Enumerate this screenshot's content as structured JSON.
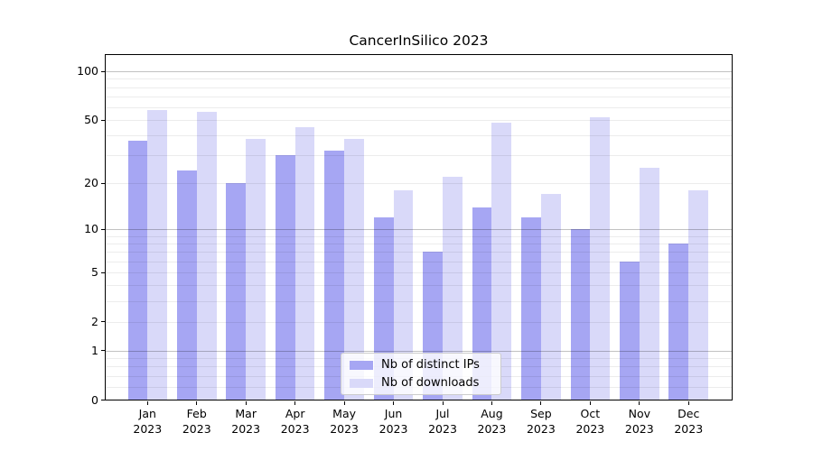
{
  "title": "CancerInSilico 2023",
  "chart_data": {
    "type": "bar",
    "title": "CancerInSilico 2023",
    "categories": [
      "Jan",
      "Feb",
      "Mar",
      "Apr",
      "May",
      "Jun",
      "Jul",
      "Aug",
      "Sep",
      "Oct",
      "Nov",
      "Dec"
    ],
    "category_year_line": "2023",
    "series": [
      {
        "name": "Nb of distinct IPs",
        "color": "#a6a6f3",
        "values": [
          37,
          24,
          20,
          30,
          32,
          12,
          7,
          14,
          12,
          10,
          6,
          8
        ]
      },
      {
        "name": "Nb of downloads",
        "color": "#d9d9f9",
        "values": [
          58,
          56,
          38,
          45,
          38,
          18,
          22,
          48,
          17,
          52,
          25,
          18
        ]
      }
    ],
    "y_scale": "log10(1+v)",
    "y_axis_ticks": [
      0,
      1,
      2,
      5,
      10,
      20,
      50,
      100
    ],
    "y_gridlines_major": [
      1,
      10,
      100
    ],
    "y_gridlines_minor": [
      0.2,
      0.4,
      0.6,
      0.8,
      2,
      3,
      4,
      5,
      6,
      7,
      8,
      9,
      20,
      30,
      40,
      50,
      60,
      70,
      80,
      90
    ],
    "ylim": [
      0,
      128
    ],
    "xlabel": "",
    "ylabel": "",
    "grid": true,
    "legend_position": "lower center"
  },
  "legend": {
    "items": [
      {
        "label": "Nb of distinct IPs"
      },
      {
        "label": "Nb of downloads"
      }
    ]
  }
}
